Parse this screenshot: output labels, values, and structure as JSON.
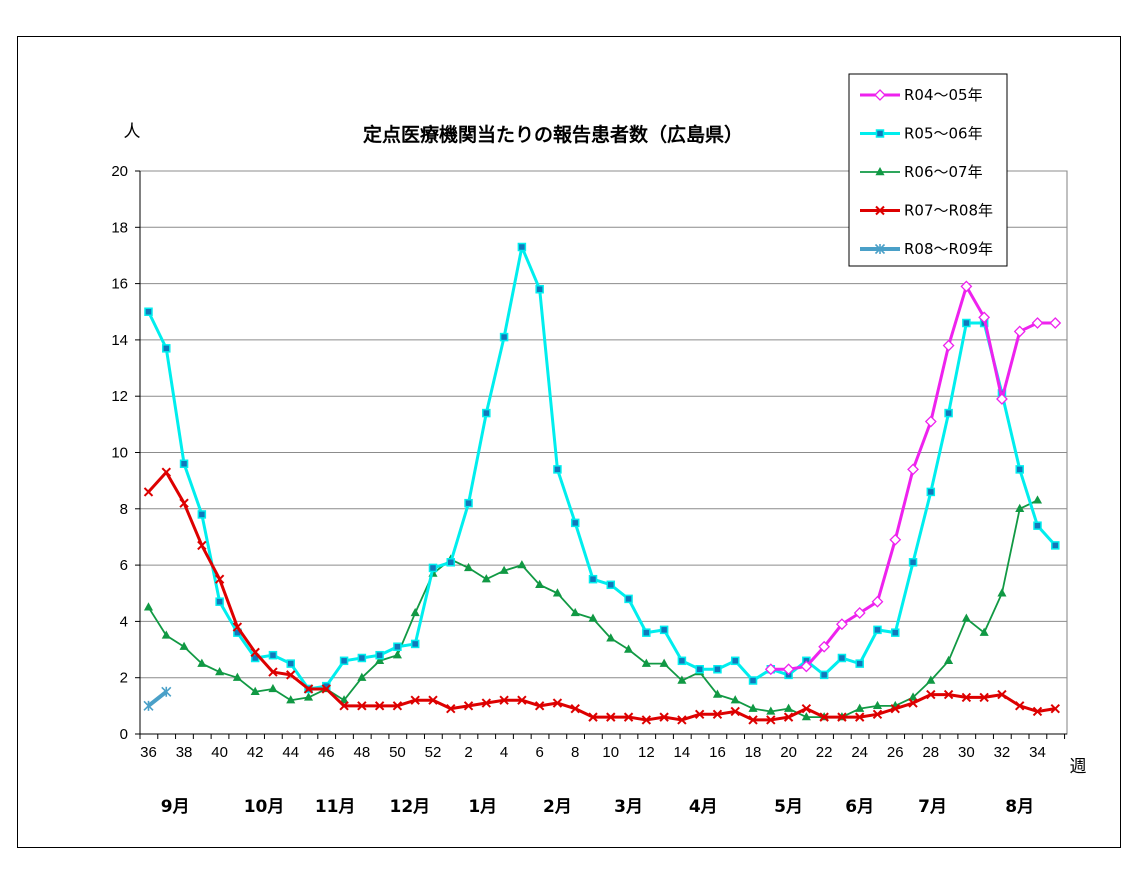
{
  "chart_data": {
    "type": "line",
    "title": "定点医療機関当たりの報告患者数（広島県）",
    "ylabel": "人",
    "xlabel": "週",
    "ylim": [
      0,
      20
    ],
    "yticks": [
      0,
      2,
      4,
      6,
      8,
      10,
      12,
      14,
      16,
      18,
      20
    ],
    "grid": true,
    "legend_position": "top-right",
    "week_axis_labels": [
      "36",
      "",
      "38",
      "",
      "40",
      "",
      "42",
      "",
      "44",
      "",
      "46",
      "",
      "48",
      "",
      "50",
      "",
      "52",
      "",
      "2",
      "",
      "4",
      "",
      "6",
      "",
      "8",
      "",
      "10",
      "",
      "12",
      "",
      "14",
      "",
      "16",
      "",
      "18",
      "",
      "20",
      "",
      "22",
      "",
      "24",
      "",
      "26",
      "",
      "28",
      "",
      "30",
      "",
      "32",
      "",
      "34",
      ""
    ],
    "months": [
      {
        "label": "9月",
        "week_index": 1.5
      },
      {
        "label": "10月",
        "week_index": 6.5
      },
      {
        "label": "11月",
        "week_index": 10.5
      },
      {
        "label": "12月",
        "week_index": 14.7
      },
      {
        "label": "1月",
        "week_index": 18.8
      },
      {
        "label": "2月",
        "week_index": 23
      },
      {
        "label": "3月",
        "week_index": 27
      },
      {
        "label": "4月",
        "week_index": 31.2
      },
      {
        "label": "5月",
        "week_index": 36
      },
      {
        "label": "6月",
        "week_index": 40
      },
      {
        "label": "7月",
        "week_index": 44.1
      },
      {
        "label": "8月",
        "week_index": 49
      }
    ],
    "series": [
      {
        "name": "R04～05年",
        "color": "#ee22ee",
        "marker": "diamond",
        "start_index": 35,
        "values": [
          2.3,
          2.3,
          2.4,
          3.1,
          3.9,
          4.3,
          4.7,
          6.9,
          9.4,
          11.1,
          13.8,
          15.9,
          14.8,
          11.9,
          14.3,
          14.6,
          14.6
        ]
      },
      {
        "name": "R05～06年",
        "color": "#00eeee",
        "marker": "square",
        "start_index": 0,
        "values": [
          15.0,
          13.7,
          9.6,
          7.8,
          4.7,
          3.6,
          2.7,
          2.8,
          2.5,
          1.6,
          1.7,
          2.6,
          2.7,
          2.8,
          3.1,
          3.2,
          5.9,
          6.1,
          8.2,
          11.4,
          14.1,
          17.3,
          15.8,
          9.4,
          7.5,
          5.5,
          5.3,
          4.8,
          3.6,
          3.7,
          2.6,
          2.3,
          2.3,
          2.6,
          1.9,
          2.3,
          2.1,
          2.6,
          2.1,
          2.7,
          2.5,
          3.7,
          3.6,
          6.1,
          8.6,
          11.4,
          14.6,
          14.6,
          12.1,
          9.4,
          7.4,
          6.7
        ]
      },
      {
        "name": "R06～07年",
        "color": "#119944",
        "marker": "triangle",
        "start_index": 0,
        "values": [
          4.5,
          3.5,
          3.1,
          2.5,
          2.2,
          2.0,
          1.5,
          1.6,
          1.2,
          1.3,
          1.6,
          1.2,
          2.0,
          2.6,
          2.8,
          4.3,
          5.7,
          6.2,
          5.9,
          5.5,
          5.8,
          6.0,
          5.3,
          5.0,
          4.3,
          4.1,
          3.4,
          3.0,
          2.5,
          2.5,
          1.9,
          2.2,
          1.4,
          1.2,
          0.9,
          0.8,
          0.9,
          0.6,
          0.6,
          0.6,
          0.9,
          1.0,
          1.0,
          1.3,
          1.9,
          2.6,
          4.1,
          3.6,
          5.0,
          8.0,
          8.3
        ]
      },
      {
        "name": "R07～R08年",
        "color": "#dd0000",
        "marker": "x",
        "start_index": 0,
        "values": [
          8.6,
          9.3,
          8.2,
          6.7,
          5.5,
          3.8,
          2.9,
          2.2,
          2.1,
          1.6,
          1.6,
          1.0,
          1.0,
          1.0,
          1.0,
          1.2,
          1.2,
          0.9,
          1.0,
          1.1,
          1.2,
          1.2,
          1.0,
          1.1,
          0.9,
          0.6,
          0.6,
          0.6,
          0.5,
          0.6,
          0.5,
          0.7,
          0.7,
          0.8,
          0.5,
          0.5,
          0.6,
          0.9,
          0.6,
          0.6,
          0.6,
          0.7,
          0.9,
          1.1,
          1.4,
          1.4,
          1.3,
          1.3,
          1.4,
          1.0,
          0.8,
          0.9
        ]
      },
      {
        "name": "R08～R09年",
        "color": "#4aa0c8",
        "marker": "asterisk",
        "start_index": 0,
        "values": [
          1.0,
          1.5
        ]
      }
    ]
  }
}
